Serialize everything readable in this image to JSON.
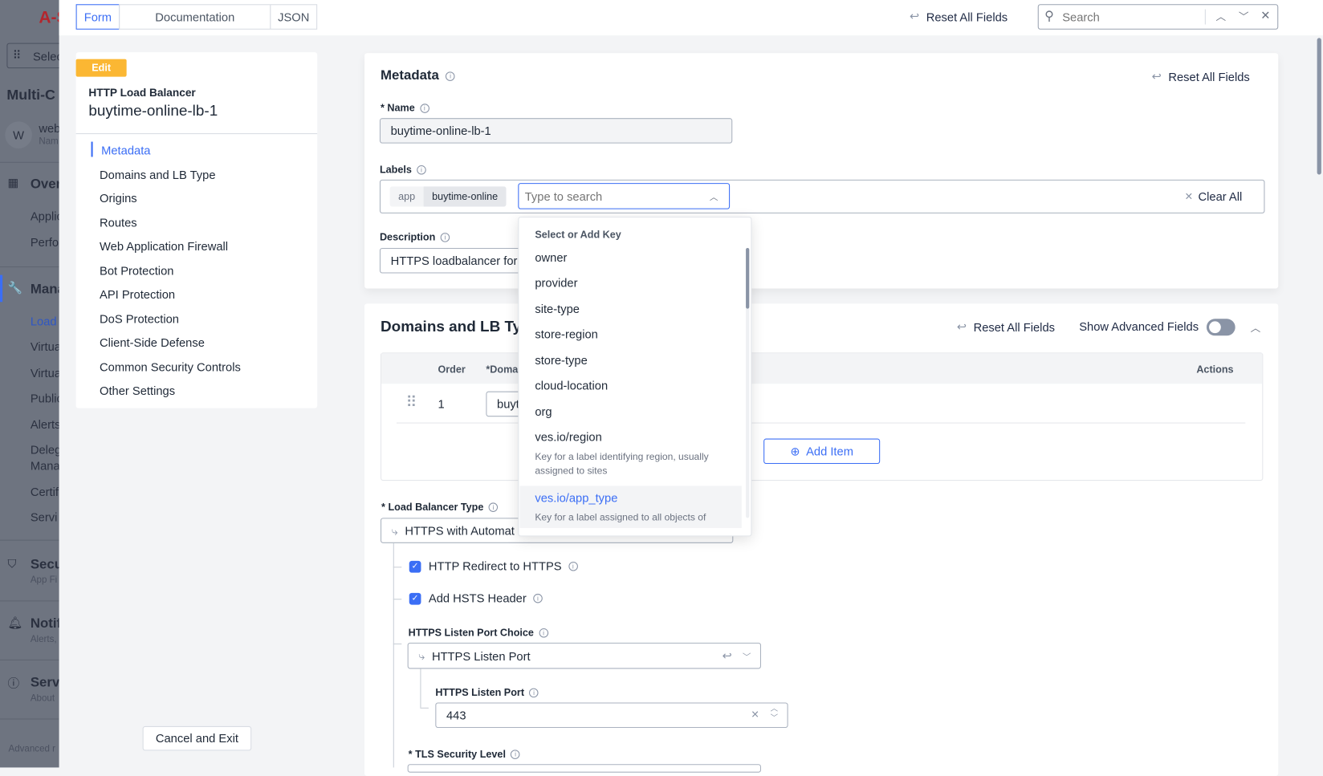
{
  "background_nav": {
    "logo": "A-S",
    "select": "Selec",
    "title": "Multi-C",
    "avatar": "W",
    "ns_name": "web",
    "ns_sub": "Nam",
    "items": [
      {
        "label": "Over",
        "bold": true
      },
      {
        "label": "Applic"
      },
      {
        "label": "Perfo"
      },
      {
        "label": "Mana",
        "bold": true
      },
      {
        "label": "Load",
        "active": true
      },
      {
        "label": "Virtua"
      },
      {
        "label": "Virtua"
      },
      {
        "label": "Public"
      },
      {
        "label": "Alerts"
      },
      {
        "label": "Deleg"
      },
      {
        "label": "Mana"
      },
      {
        "label": "Certif"
      },
      {
        "label": "Servi"
      },
      {
        "label": "Secu",
        "bold": true
      },
      {
        "label": "App Fi"
      },
      {
        "label": "Notif",
        "bold": true
      },
      {
        "label": "Alerts,"
      },
      {
        "label": "Serv",
        "bold": true
      },
      {
        "label": "About"
      }
    ],
    "footer": "Advanced r"
  },
  "tabs": {
    "form": "Form",
    "documentation": "Documentation",
    "json": "JSON"
  },
  "topbar": {
    "reset": "Reset All Fields",
    "search_placeholder": "Search"
  },
  "panel": {
    "badge": "Edit",
    "type": "HTTP Load Balancer",
    "name": "buytime-online-lb-1",
    "nav": [
      "Metadata",
      "Domains and LB Type",
      "Origins",
      "Routes",
      "Web Application Firewall",
      "Bot Protection",
      "API Protection",
      "DoS Protection",
      "Client-Side Defense",
      "Common Security Controls",
      "Other Settings"
    ],
    "cancel": "Cancel and Exit"
  },
  "metadata": {
    "title": "Metadata",
    "reset": "Reset All Fields",
    "name_label": "* Name",
    "name_value": "buytime-online-lb-1",
    "labels_label": "Labels",
    "label_key": "app",
    "label_value": "buytime-online",
    "label_search_placeholder": "Type to search",
    "clear_all": "Clear All",
    "description_label": "Description",
    "description_value": "HTTPS loadbalancer for"
  },
  "dropdown": {
    "header": "Select or Add Key",
    "options": [
      "owner",
      "provider",
      "site-type",
      "store-region",
      "store-type",
      "cloud-location",
      "org"
    ],
    "region": {
      "label": "ves.io/region",
      "desc": "Key for a label identifying region, usually assigned to sites"
    },
    "app_type": {
      "label": "ves.io/app_type",
      "desc": "Key for a label assigned to all objects of"
    }
  },
  "domains": {
    "title": "Domains and LB Typ",
    "reset": "Reset All Fields",
    "advanced": "Show Advanced Fields",
    "advanced_on": false,
    "columns": {
      "order": "Order",
      "domain": "*Doma",
      "actions": "Actions"
    },
    "row": {
      "order": "1",
      "domain": "buyt"
    },
    "add_item": "Add Item",
    "lb_type_label": "* Load Balancer Type",
    "lb_type_value": "HTTPS with Automat",
    "redirect": {
      "label": "HTTP Redirect to HTTPS",
      "checked": true
    },
    "hsts": {
      "label": "Add HSTS Header",
      "checked": true
    },
    "port_choice_label": "HTTPS Listen Port Choice",
    "port_choice_value": "HTTPS Listen Port",
    "port_label": "HTTPS Listen Port",
    "port_value": "443",
    "tls_label": "* TLS Security Level"
  },
  "colors": {
    "accent": "#3b6ef5",
    "badge": "#fbb733"
  }
}
